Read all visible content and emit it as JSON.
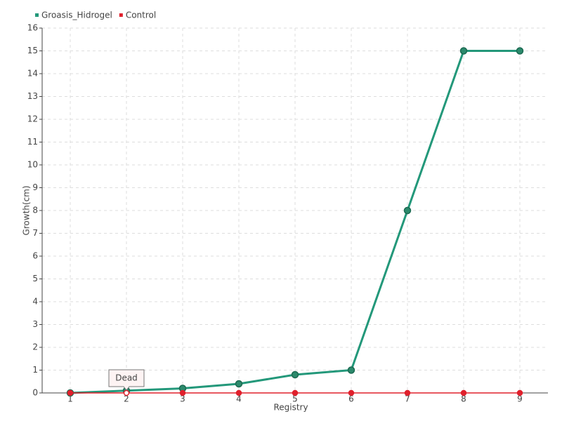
{
  "chart_data": {
    "type": "line",
    "x_label": "Registry",
    "y_label": "Growth(cm)",
    "categories": [
      "1",
      "2",
      "3",
      "4",
      "5",
      "6",
      "7",
      "8",
      "9"
    ],
    "series": [
      {
        "name": "Groasis_Hidrogel",
        "color": "#23987a",
        "values": [
          0,
          0.1,
          0.2,
          0.4,
          0.8,
          1,
          8,
          15,
          15
        ]
      },
      {
        "name": "Control",
        "color": "#e0202c",
        "values": [
          0,
          0,
          0,
          0,
          0,
          0,
          0,
          0,
          0
        ]
      }
    ],
    "annotations": [
      {
        "text": "Dead",
        "x": "2",
        "series": "Control"
      }
    ],
    "ylim": [
      0,
      16
    ],
    "yticks": [
      0,
      1,
      2,
      3,
      4,
      5,
      6,
      7,
      8,
      9,
      10,
      11,
      12,
      13,
      14,
      15,
      16
    ],
    "grid": true,
    "legend": "top-left"
  }
}
